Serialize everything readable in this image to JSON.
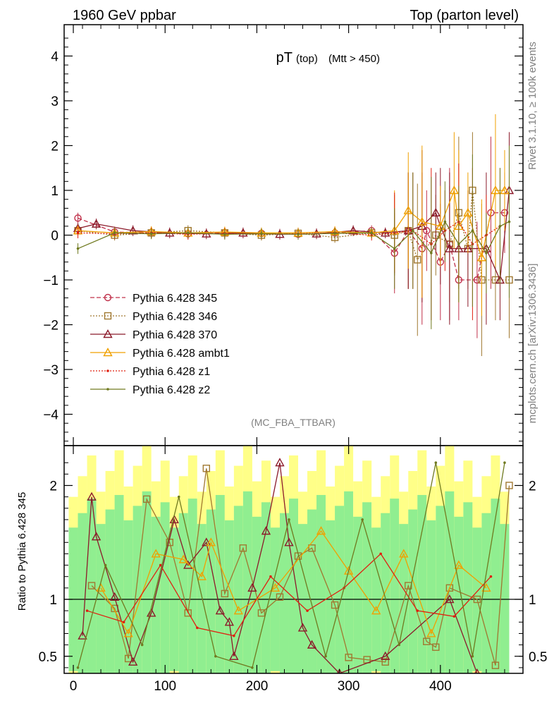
{
  "header": {
    "left": "1960 GeV ppbar",
    "right": "Top (parton level)"
  },
  "plot_title": {
    "main": "pT",
    "sub1": "(top)",
    "sub2": "(Mtt > 450)"
  },
  "analysis_label": "(MC_FBA_TTBAR)",
  "side_labels": {
    "rivet": "Rivet 3.1.10, ≥ 100k events",
    "mcplots": "mcplots.cern.ch [arXiv:1306.3436]"
  },
  "ratio_ylabel": "Ratio to Pythia 6.428 345",
  "chart_data": [
    {
      "type": "line",
      "panel": "main",
      "xlim": [
        -10,
        490
      ],
      "ylim": [
        -4.7,
        4.7
      ],
      "y_ticks": [
        "4",
        "3",
        "2",
        "1",
        "0",
        "−1",
        "−2",
        "−3",
        "−4"
      ],
      "y_tick_values": [
        4,
        3,
        2,
        1,
        0,
        -1,
        -2,
        -3,
        -4
      ],
      "legend_position": "lower-left",
      "series": [
        {
          "name": "Pythia 6.428 345",
          "color": "#c0304a",
          "marker": "circle",
          "line": "dashed",
          "x": [
            5,
            45,
            85,
            125,
            165,
            205,
            245,
            285,
            325,
            350,
            365,
            380,
            385,
            400,
            410,
            420,
            440,
            455,
            470
          ],
          "y": [
            0.38,
            0.07,
            0.05,
            0.03,
            0.05,
            0.04,
            0.02,
            0.05,
            0.1,
            -0.4,
            0.1,
            -0.3,
            0.1,
            -0.6,
            -0.2,
            -1.0,
            -1.0,
            0.5,
            0.5
          ]
        },
        {
          "name": "Pythia 6.428 346",
          "color": "#a07830",
          "marker": "square",
          "line": "dotted",
          "x": [
            5,
            45,
            85,
            125,
            165,
            205,
            245,
            285,
            325,
            350,
            365,
            375,
            395,
            410,
            420,
            430,
            435,
            445,
            460,
            475
          ],
          "y": [
            0.1,
            0.0,
            0.05,
            0.1,
            0.05,
            0.0,
            0.04,
            -0.05,
            0.05,
            0.0,
            0.1,
            -0.55,
            0.0,
            -0.2,
            0.5,
            -0.3,
            1.0,
            -1.0,
            -1.0,
            -1.0
          ]
        },
        {
          "name": "Pythia 6.428 370",
          "color": "#8b1a2a",
          "marker": "triangle",
          "line": "solid",
          "x": [
            5,
            25,
            65,
            105,
            145,
            185,
            225,
            265,
            305,
            340,
            365,
            380,
            395,
            400,
            410,
            420,
            430,
            450,
            465,
            475
          ],
          "y": [
            0.15,
            0.25,
            0.1,
            0.05,
            0.03,
            0.05,
            0.02,
            0.03,
            0.1,
            0.05,
            0.1,
            0.2,
            0.5,
            0.2,
            -0.3,
            -0.3,
            -0.3,
            -0.3,
            -1.0,
            1.0
          ]
        },
        {
          "name": "Pythia 6.428 ambt1",
          "color": "#f0a000",
          "marker": "triangle",
          "line": "solid",
          "x": [
            5,
            45,
            85,
            125,
            165,
            205,
            245,
            285,
            325,
            350,
            365,
            380,
            400,
            415,
            420,
            430,
            445,
            460,
            470
          ],
          "y": [
            0.1,
            0.05,
            0.08,
            0.05,
            0.07,
            0.05,
            0.05,
            0.08,
            0.05,
            0.1,
            0.55,
            0.3,
            0.2,
            1.0,
            0.2,
            0.5,
            -0.5,
            1.0,
            1.0
          ]
        },
        {
          "name": "Pythia 6.428 z1",
          "color": "#e02010",
          "marker": "dot",
          "line": "dotted",
          "x": [
            5,
            45,
            85,
            125,
            165,
            205,
            245,
            285,
            325,
            350,
            370,
            390,
            405,
            420,
            435,
            450,
            465
          ],
          "y": [
            0.05,
            0.03,
            0.05,
            0.02,
            0.04,
            0.02,
            0.03,
            0.05,
            0.0,
            0.05,
            0.1,
            -0.2,
            0.1,
            0.3,
            -0.2,
            0.0,
            0.2
          ]
        },
        {
          "name": "Pythia 6.428 z2",
          "color": "#707a20",
          "marker": "dot",
          "line": "solid",
          "x": [
            5,
            45,
            85,
            125,
            165,
            205,
            245,
            285,
            325,
            350,
            370,
            390,
            405,
            420,
            435,
            450,
            465,
            475
          ],
          "y": [
            -0.3,
            0.05,
            0.03,
            0.05,
            0.02,
            0.03,
            0.02,
            0.04,
            0.05,
            -0.3,
            0.1,
            -0.4,
            0.3,
            -0.2,
            0.1,
            -0.4,
            0.2,
            0.3
          ]
        }
      ]
    },
    {
      "type": "line",
      "panel": "ratio",
      "xlim": [
        -10,
        490
      ],
      "ylim": [
        0.35,
        2.35
      ],
      "x_ticks": [
        "0",
        "100",
        "200",
        "300",
        "400"
      ],
      "x_tick_values": [
        0,
        100,
        200,
        300,
        400
      ],
      "y_ticks": [
        "2",
        "1",
        "0.5"
      ],
      "y_tick_values": [
        2,
        1,
        0.5
      ],
      "reference_line": 1.0,
      "band_colors": {
        "inner": "#90ee90",
        "outer": "#ffff88"
      },
      "series": [
        {
          "name": "Pythia 6.428 346",
          "color": "#a07830",
          "marker": "square",
          "x": [
            20,
            45,
            60,
            80,
            105,
            125,
            145,
            165,
            185,
            205,
            225,
            245,
            260,
            285,
            300,
            320,
            340,
            365,
            385,
            395,
            410,
            440,
            460,
            475
          ],
          "y": [
            1.12,
            0.92,
            0.48,
            1.88,
            1.5,
            0.88,
            2.15,
            1.05,
            1.45,
            0.88,
            1.02,
            1.38,
            1.45,
            0.95,
            0.49,
            0.47,
            0.45,
            1.12,
            0.63,
            0.58,
            1.1,
            1.0,
            0.42,
            2.0
          ]
        },
        {
          "name": "Pythia 6.428 370",
          "color": "#8b1a2a",
          "marker": "triangle",
          "x": [
            10,
            20,
            25,
            45,
            65,
            85,
            110,
            125,
            145,
            160,
            170,
            175,
            195,
            210,
            225,
            235,
            250,
            260,
            290,
            340,
            410,
            440
          ],
          "y": [
            0.68,
            1.9,
            1.55,
            1.02,
            0.45,
            0.88,
            1.7,
            1.3,
            1.5,
            0.9,
            0.8,
            0.5,
            1.1,
            1.6,
            2.2,
            1.5,
            0.75,
            0.6,
            0.35,
            0.5,
            1.0,
            0.35
          ]
        },
        {
          "name": "Pythia 6.428 ambt1",
          "color": "#f0a000",
          "marker": "triangle",
          "x": [
            30,
            60,
            90,
            120,
            140,
            150,
            180,
            220,
            270,
            300,
            330,
            360,
            390,
            420,
            450
          ],
          "y": [
            1.1,
            0.7,
            1.4,
            1.35,
            1.2,
            1.5,
            0.9,
            1.1,
            1.6,
            1.25,
            0.9,
            1.4,
            0.7,
            1.3,
            1.1
          ]
        },
        {
          "name": "Pythia 6.428 z1",
          "color": "#e02010",
          "marker": "dot",
          "x": [
            15,
            55,
            95,
            135,
            175,
            215,
            255,
            295,
            335,
            375,
            415,
            455
          ],
          "y": [
            0.9,
            0.8,
            1.3,
            0.75,
            0.68,
            1.2,
            0.9,
            1.1,
            1.4,
            0.9,
            0.85,
            1.2
          ]
        },
        {
          "name": "Pythia 6.428 z2",
          "color": "#707a20",
          "marker": "dot",
          "x": [
            5,
            35,
            75,
            115,
            155,
            195,
            235,
            275,
            315,
            355,
            395,
            435,
            470
          ],
          "y": [
            0.4,
            1.3,
            0.6,
            1.9,
            0.5,
            0.4,
            1.7,
            0.5,
            1.7,
            0.6,
            2.2,
            0.5,
            2.2
          ]
        }
      ]
    }
  ]
}
